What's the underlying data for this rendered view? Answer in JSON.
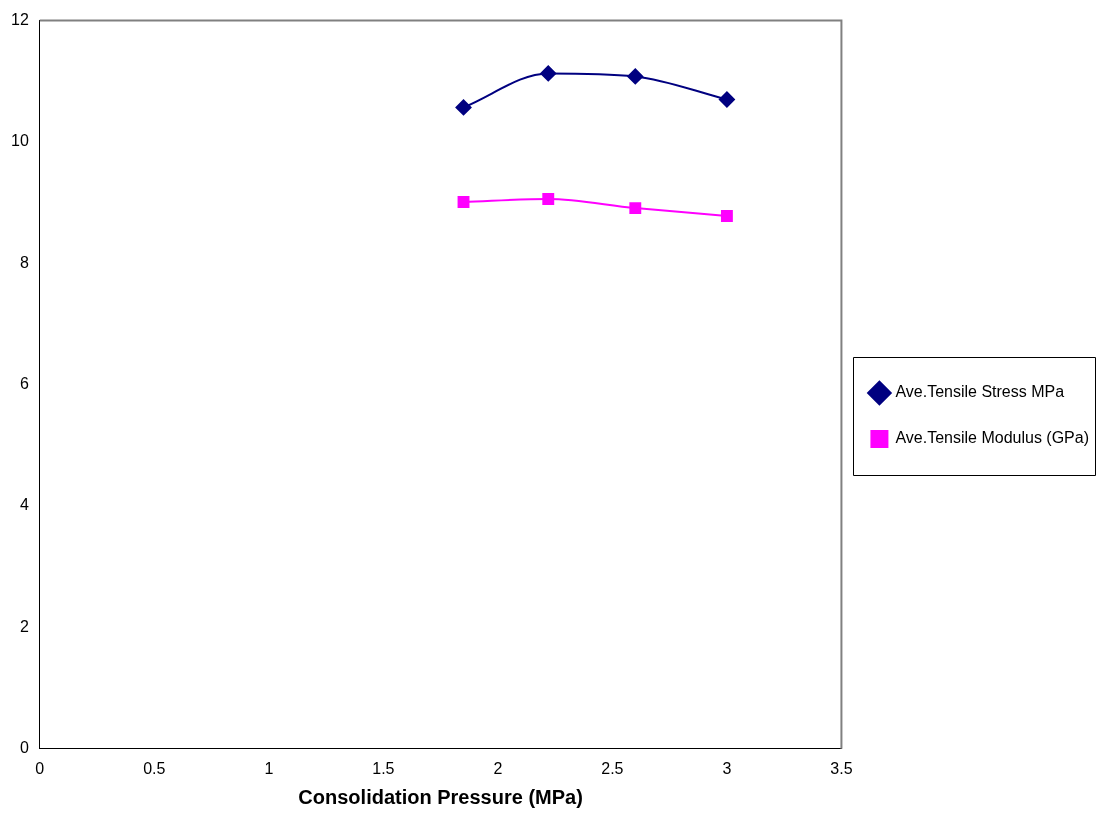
{
  "chart_data": {
    "type": "line",
    "xlabel": "Consolidation Pressure (MPa)",
    "x": [
      1.85,
      2.22,
      2.6,
      3.0
    ],
    "series": [
      {
        "name": "Ave.Tensile Stress MPa",
        "color": "#000080",
        "values": [
          10.57,
          11.13,
          11.08,
          10.7
        ],
        "marker": "diamond"
      },
      {
        "name": "Ave.Tensile Modulus (GPa)",
        "color": "#ff00ff",
        "values": [
          9.01,
          9.06,
          8.91,
          8.78
        ],
        "marker": "square"
      }
    ],
    "xlim": [
      0,
      3.5
    ],
    "xticks": [
      0,
      0.5,
      1,
      1.5,
      2,
      2.5,
      3,
      3.5
    ],
    "ylim": [
      0,
      12
    ],
    "yticks": [
      0,
      2,
      4,
      6,
      8,
      10,
      12
    ],
    "grid": false,
    "legend": "right",
    "line_style": "solid"
  }
}
